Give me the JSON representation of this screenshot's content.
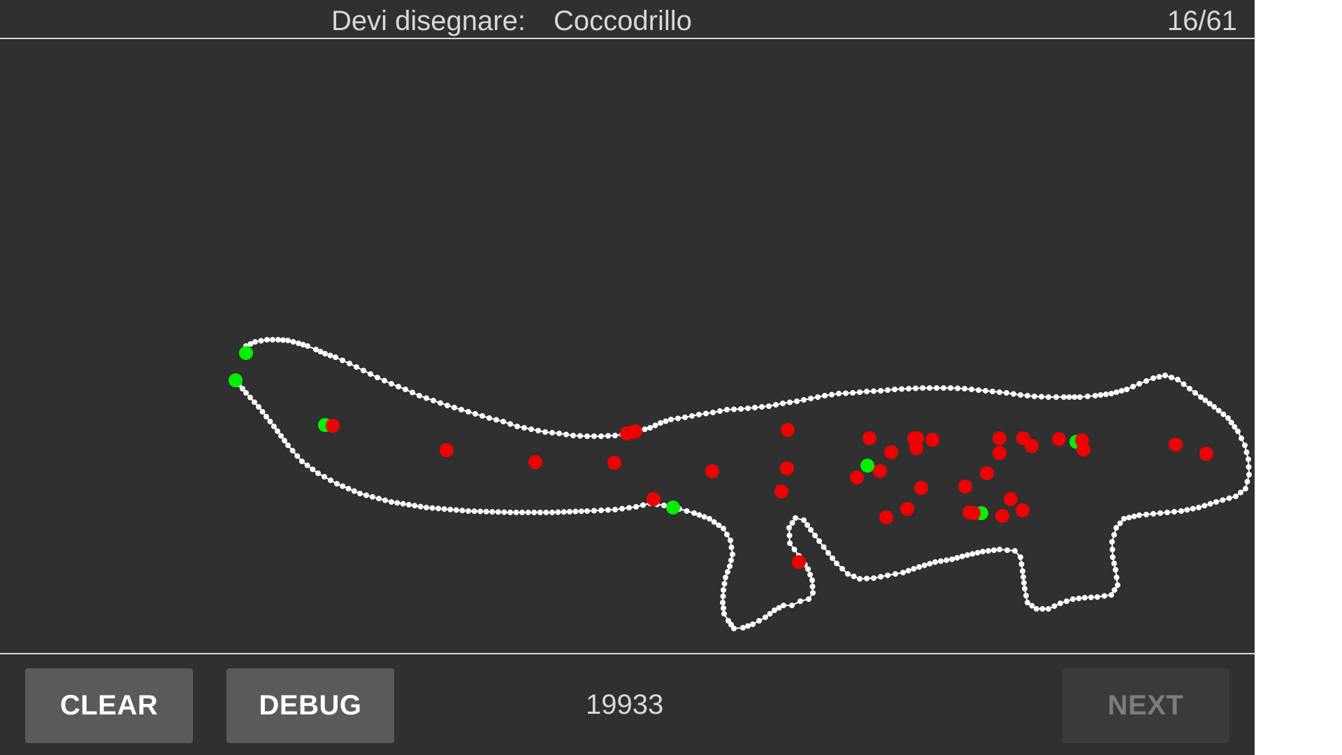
{
  "header": {
    "prompt_label": "Devi disegnare:",
    "prompt_word": "Coccodrillo",
    "progress": "16/61"
  },
  "canvas": {
    "stroke_color": "#ffffff",
    "marker_colors": {
      "match": "#00ee00",
      "guess": "#ee0000"
    },
    "icon": "drawing-canvas"
  },
  "footer": {
    "clear_label": "CLEAR",
    "debug_label": "DEBUG",
    "score": "19933",
    "next_label": "NEXT"
  },
  "theme": {
    "background": "#303030",
    "text": "#d8d8d8",
    "button": "#5a5a5c",
    "button_disabled": "#3a3a3c"
  }
}
